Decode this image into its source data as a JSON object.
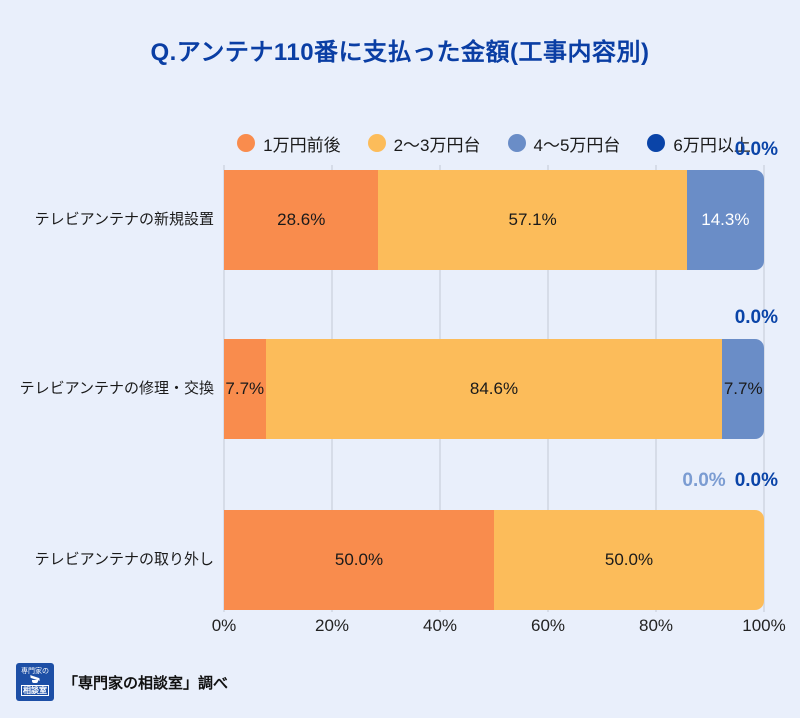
{
  "title": "Q.アンテナ110番に支払った金額(工事内容別)",
  "title_color": "#0A3EA4",
  "background_color": "#E9EFFB",
  "legend": [
    {
      "label": "1万円前後",
      "color": "#F98C4D"
    },
    {
      "label": "2〜3万円台",
      "color": "#FCBC5A"
    },
    {
      "label": "4〜5万円台",
      "color": "#6A8DC7"
    },
    {
      "label": "6万円以上",
      "color": "#0A44A8"
    }
  ],
  "chart_data": {
    "type": "bar",
    "orientation": "horizontal",
    "stacked": true,
    "title": "Q.アンテナ110番に支払った金額(工事内容別)",
    "categories": [
      "テレビアンテナの新規設置",
      "テレビアンテナの修理・交換",
      "テレビアンテナの取り外し"
    ],
    "series": [
      {
        "name": "1万円前後",
        "color": "#F98C4D",
        "values": [
          28.6,
          7.7,
          50.0
        ]
      },
      {
        "name": "2〜3万円台",
        "color": "#FCBC5A",
        "values": [
          57.1,
          84.6,
          50.0
        ]
      },
      {
        "name": "4〜5万円台",
        "color": "#6A8DC7",
        "values": [
          14.3,
          7.7,
          0.0
        ]
      },
      {
        "name": "6万円以上",
        "color": "#0A44A8",
        "values": [
          0.0,
          0.0,
          0.0
        ]
      }
    ],
    "x_ticks": [
      "0%",
      "20%",
      "40%",
      "60%",
      "80%",
      "100%"
    ],
    "xlim": [
      0,
      100
    ],
    "grid": true,
    "legend_position": "top",
    "display": {
      "rows": [
        {
          "category": "テレビアンテナの新規設置",
          "segments": [
            {
              "name": "1万円前後",
              "value": 28.6,
              "label": "28.6%",
              "color": "#F98C4D",
              "label_color": "#1A1A1A"
            },
            {
              "name": "2〜3万円台",
              "value": 57.1,
              "label": "57.1%",
              "color": "#FCBC5A",
              "label_color": "#1A1A1A"
            },
            {
              "name": "4〜5万円台",
              "value": 14.3,
              "label": "14.3%",
              "color": "#6A8DC7",
              "label_color": "#FFFFFF"
            }
          ],
          "zero_labels": [
            {
              "name": "6万円以上",
              "label": "0.0%",
              "color": "#0A44A8"
            }
          ]
        },
        {
          "category": "テレビアンテナの修理・交換",
          "segments": [
            {
              "name": "1万円前後",
              "value": 7.7,
              "label": "7.7%",
              "color": "#F98C4D",
              "label_color": "#1A1A1A"
            },
            {
              "name": "2〜3万円台",
              "value": 84.6,
              "label": "84.6%",
              "color": "#FCBC5A",
              "label_color": "#1A1A1A"
            },
            {
              "name": "4〜5万円台",
              "value": 7.7,
              "label": "7.7%",
              "color": "#6A8DC7",
              "label_color": "#1A1A1A"
            }
          ],
          "zero_labels": [
            {
              "name": "6万円以上",
              "label": "0.0%",
              "color": "#0A44A8"
            }
          ]
        },
        {
          "category": "テレビアンテナの取り外し",
          "segments": [
            {
              "name": "1万円前後",
              "value": 50.0,
              "label": "50.0%",
              "color": "#F98C4D",
              "label_color": "#1A1A1A"
            },
            {
              "name": "2〜3万円台",
              "value": 50.0,
              "label": "50.0%",
              "color": "#FCBC5A",
              "label_color": "#1A1A1A"
            }
          ],
          "zero_labels": [
            {
              "name": "4〜5万円台",
              "label": "0.0%",
              "color": "#7B9CD2"
            },
            {
              "name": "6万円以上",
              "label": "0.0%",
              "color": "#0A44A8"
            }
          ]
        }
      ]
    }
  },
  "footer": {
    "logo_line1": "専門家の",
    "logo_line2": "相談室",
    "source_text": "「専門家の相談室」調べ"
  }
}
